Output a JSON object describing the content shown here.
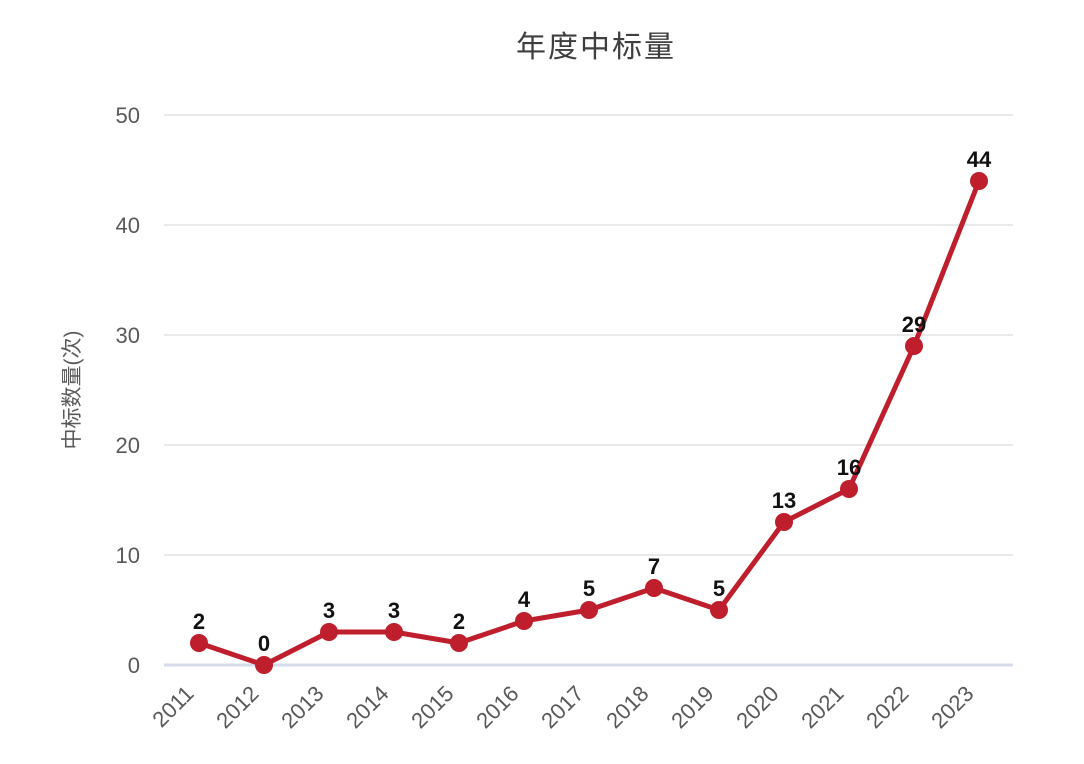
{
  "page": {
    "background": "#ffffff"
  },
  "chart_data": {
    "type": "line",
    "title": "年度中标量",
    "ylabel": "中标数量(次)",
    "xlabel": "",
    "categories": [
      "2011",
      "2012",
      "2013",
      "2014",
      "2015",
      "2016",
      "2017",
      "2018",
      "2019",
      "2020",
      "2021",
      "2022",
      "2023"
    ],
    "values": [
      2,
      0,
      3,
      3,
      2,
      4,
      5,
      7,
      5,
      13,
      16,
      29,
      44
    ],
    "data_labels_visible": true,
    "yticks": [
      0,
      10,
      20,
      30,
      40,
      50
    ],
    "ylim": [
      0,
      50
    ],
    "grid": "horizontal",
    "legend": "none",
    "x_tick_rotation": -45,
    "marker": "circle",
    "colors": {
      "line": "#bf1e2d",
      "marker": "#bf1e2d",
      "data_label": "#111111",
      "tick_label": "#595959",
      "axis_title": "#595959",
      "title": "#3f3f3f",
      "gridline": "#e9e9e9",
      "baseline": "#d5dbea"
    }
  }
}
